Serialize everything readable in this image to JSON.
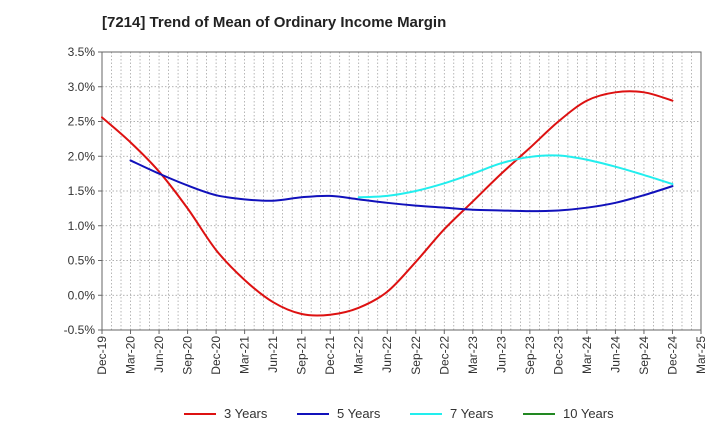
{
  "chart_data": {
    "type": "line",
    "title": "[7214]  Trend of Mean of Ordinary Income Margin",
    "xlabel": "",
    "ylabel": "",
    "x_ticks": [
      "Dec-19",
      "Mar-20",
      "Jun-20",
      "Sep-20",
      "Dec-20",
      "Mar-21",
      "Jun-21",
      "Sep-21",
      "Dec-21",
      "Mar-22",
      "Jun-22",
      "Sep-22",
      "Dec-22",
      "Mar-23",
      "Jun-23",
      "Sep-23",
      "Dec-23",
      "Mar-24",
      "Jun-24",
      "Sep-24",
      "Dec-24",
      "Mar-25"
    ],
    "y_ticks": [
      "3.5%",
      "3.0%",
      "2.5%",
      "2.0%",
      "1.5%",
      "1.0%",
      "0.5%",
      "0.0%",
      "-0.5%"
    ],
    "ylim": [
      -0.5,
      3.5
    ],
    "grid": true,
    "legend_position": "bottom",
    "series": [
      {
        "name": "3 Years",
        "color": "#dd1111",
        "points": [
          [
            0,
            2.56
          ],
          [
            1,
            2.2
          ],
          [
            2,
            1.78
          ],
          [
            3,
            1.25
          ],
          [
            4,
            0.65
          ],
          [
            5,
            0.22
          ],
          [
            6,
            -0.1
          ],
          [
            7,
            -0.27
          ],
          [
            8,
            -0.28
          ],
          [
            9,
            -0.18
          ],
          [
            10,
            0.05
          ],
          [
            11,
            0.48
          ],
          [
            12,
            0.95
          ],
          [
            13,
            1.35
          ],
          [
            14,
            1.75
          ],
          [
            15,
            2.12
          ],
          [
            16,
            2.5
          ],
          [
            17,
            2.8
          ],
          [
            18,
            2.92
          ],
          [
            19,
            2.92
          ],
          [
            20,
            2.8
          ]
        ]
      },
      {
        "name": "5 Years",
        "color": "#1111bb",
        "points": [
          [
            1,
            1.94
          ],
          [
            2,
            1.75
          ],
          [
            3,
            1.58
          ],
          [
            4,
            1.44
          ],
          [
            5,
            1.38
          ],
          [
            6,
            1.36
          ],
          [
            7,
            1.41
          ],
          [
            8,
            1.43
          ],
          [
            9,
            1.38
          ],
          [
            10,
            1.33
          ],
          [
            11,
            1.29
          ],
          [
            12,
            1.26
          ],
          [
            13,
            1.23
          ],
          [
            14,
            1.22
          ],
          [
            15,
            1.21
          ],
          [
            16,
            1.22
          ],
          [
            17,
            1.26
          ],
          [
            18,
            1.33
          ],
          [
            19,
            1.44
          ],
          [
            20,
            1.57
          ]
        ]
      },
      {
        "name": "7 Years",
        "color": "#22eeee",
        "points": [
          [
            9,
            1.41
          ],
          [
            10,
            1.43
          ],
          [
            11,
            1.5
          ],
          [
            12,
            1.61
          ],
          [
            13,
            1.75
          ],
          [
            14,
            1.9
          ],
          [
            15,
            1.99
          ],
          [
            16,
            2.01
          ],
          [
            17,
            1.95
          ],
          [
            18,
            1.85
          ],
          [
            19,
            1.73
          ],
          [
            20,
            1.6
          ]
        ]
      },
      {
        "name": "10 Years",
        "color": "#228822",
        "points": []
      }
    ]
  }
}
